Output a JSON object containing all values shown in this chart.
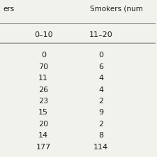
{
  "header_partial_left": "ers",
  "header_partial_right": "Smokers (num",
  "col1_header": "0–10",
  "col2_header": "11–20",
  "col1_data": [
    "0",
    "70",
    "11",
    "26",
    "23",
    "15",
    "20",
    "14",
    "177"
  ],
  "col2_data": [
    "0",
    "6",
    "4",
    "4",
    "2",
    "9",
    "2",
    "8",
    "114"
  ],
  "bg_color": "#f2f2ed",
  "text_color": "#1a1a1a",
  "line_color": "#999999"
}
